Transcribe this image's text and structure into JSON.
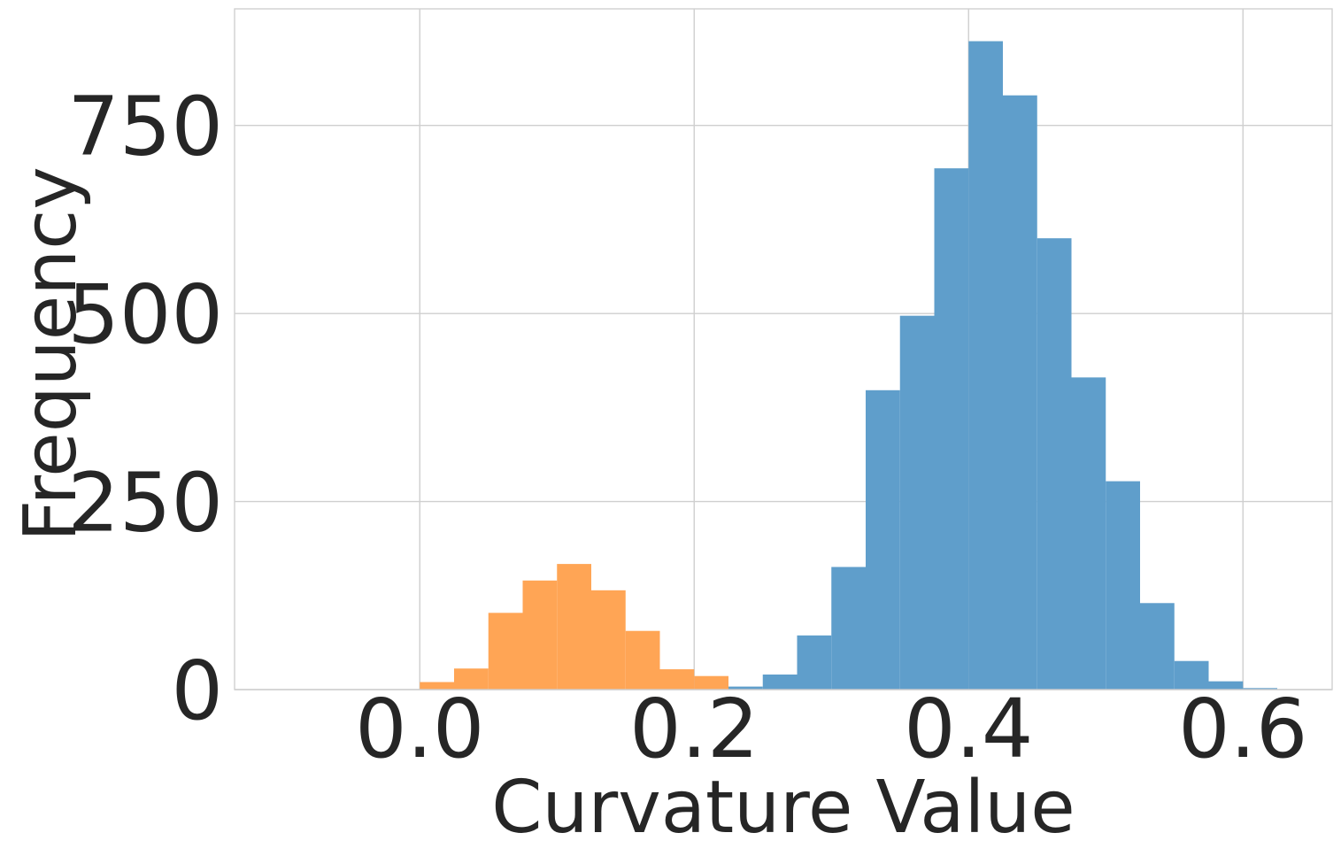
{
  "chart_data": {
    "type": "bar",
    "xlabel": "Curvature Value",
    "ylabel": "Frequency",
    "xlim": [
      -0.135,
      0.665
    ],
    "ylim": [
      0,
      905
    ],
    "grid": true,
    "legend": "none",
    "x_ticks": [
      {
        "value": 0.0,
        "label": "0.0"
      },
      {
        "value": 0.2,
        "label": "0.2"
      },
      {
        "value": 0.4,
        "label": "0.4"
      },
      {
        "value": 0.6,
        "label": "0.6"
      }
    ],
    "y_ticks": [
      {
        "value": 0,
        "label": "0"
      },
      {
        "value": 250,
        "label": "250"
      },
      {
        "value": 500,
        "label": "500"
      },
      {
        "value": 750,
        "label": "750"
      }
    ],
    "series": [
      {
        "color": "#ffa555",
        "bin_edges": [
          0.0,
          0.025,
          0.05,
          0.075,
          0.1,
          0.125,
          0.15,
          0.175,
          0.2,
          0.225
        ],
        "counts": [
          10,
          28,
          102,
          145,
          167,
          132,
          78,
          27,
          18
        ]
      },
      {
        "color": "#5f9ecb",
        "bin_edges": [
          0.225,
          0.25,
          0.275,
          0.3,
          0.325,
          0.35,
          0.375,
          0.4,
          0.425,
          0.45,
          0.475,
          0.5,
          0.525,
          0.55,
          0.575,
          0.6,
          0.625
        ],
        "counts": [
          4,
          20,
          72,
          163,
          398,
          497,
          693,
          862,
          790,
          600,
          415,
          277,
          115,
          38,
          11,
          2
        ]
      }
    ]
  }
}
